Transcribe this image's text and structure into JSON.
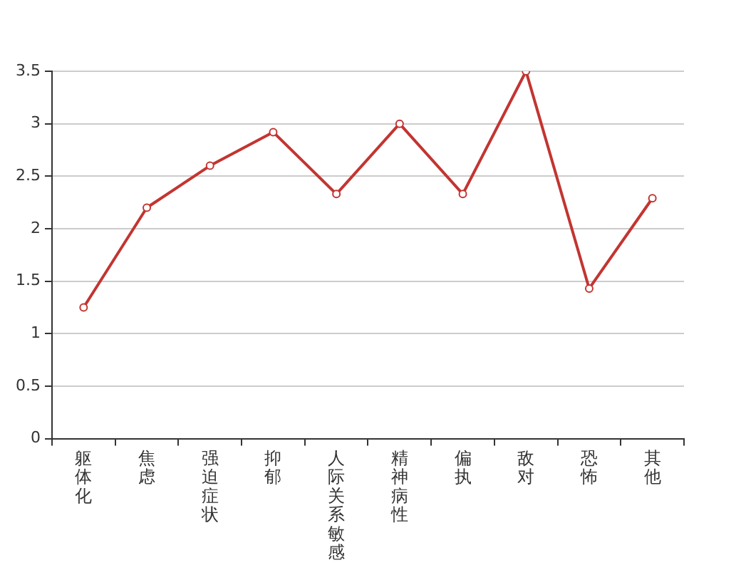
{
  "chart_data": {
    "type": "line",
    "categories": [
      "躯体化",
      "焦虑",
      "强迫症状",
      "抑郁",
      "人际关系敏感",
      "精神病性",
      "偏执",
      "敌对",
      "恐怖",
      "其他"
    ],
    "series": [
      {
        "color": "#c23531",
        "values": [
          1.25,
          2.2,
          2.6,
          2.92,
          2.33,
          3.0,
          2.33,
          3.5,
          1.43,
          2.29
        ]
      }
    ],
    "ylim": [
      0,
      3.5
    ],
    "yticks": [
      0,
      0.5,
      1,
      1.5,
      2,
      2.5,
      3,
      3.5
    ],
    "grid": "y",
    "legend": false,
    "marker": "circle",
    "line_style": "solid"
  }
}
